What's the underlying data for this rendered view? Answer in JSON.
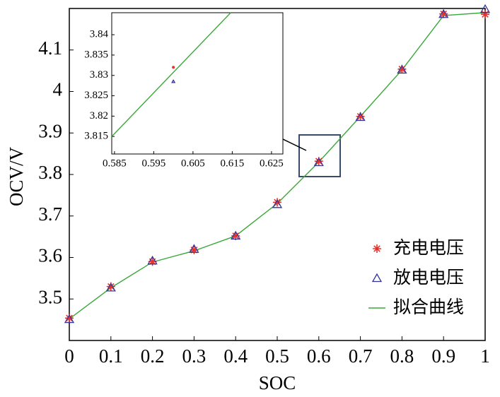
{
  "chart_data": [
    {
      "type": "line",
      "xlabel": "SOC",
      "ylabel": "OCV/V",
      "x": [
        0,
        0.1,
        0.2,
        0.3,
        0.4,
        0.5,
        0.6,
        0.7,
        0.8,
        0.9,
        1
      ],
      "xlim": [
        0,
        1
      ],
      "xticks": [
        0,
        0.1,
        0.2,
        0.3,
        0.4,
        0.5,
        0.6,
        0.7,
        0.8,
        0.9,
        1
      ],
      "ylim": [
        3.4,
        4.2
      ],
      "yticks": [
        3.5,
        3.6,
        3.7,
        3.8,
        3.9,
        4,
        4.1
      ],
      "legend": "right",
      "series": [
        {
          "name": "充电电压",
          "color": "#e8302a",
          "marker": "star",
          "values": [
            3.454,
            3.53,
            3.59,
            3.618,
            3.652,
            3.733,
            3.832,
            3.94,
            4.054,
            4.187,
            4.186
          ]
        },
        {
          "name": "放电电压",
          "color": "#33339a",
          "marker": "triangle",
          "values": [
            3.451,
            3.527,
            3.592,
            3.62,
            3.652,
            3.728,
            3.829,
            3.938,
            4.052,
            4.186,
            4.198
          ]
        },
        {
          "name": "拟合曲线",
          "color": "#3aa83a",
          "marker": "none",
          "values": [
            3.452,
            3.527,
            3.589,
            3.616,
            3.652,
            3.73,
            3.83,
            3.94,
            4.052,
            4.183,
            4.19
          ]
        }
      ]
    },
    {
      "type": "line",
      "xlim": [
        0.5843,
        0.6279
      ],
      "xticks": [
        0.585,
        0.595,
        0.605,
        0.615,
        0.625
      ],
      "ylim": [
        3.8107,
        3.8454
      ],
      "yticks": [
        3.815,
        3.82,
        3.825,
        3.83,
        3.835,
        3.84
      ],
      "series": [
        {
          "color": "#e8302a",
          "marker": "dot",
          "x": [
            0.6
          ],
          "values": [
            3.832
          ]
        },
        {
          "color": "#33339a",
          "marker": "triangle",
          "x": [
            0.6
          ],
          "values": [
            3.8285
          ]
        },
        {
          "color": "#3aa83a",
          "marker": "none",
          "x": [
            0.5843,
            0.6146
          ],
          "values": [
            3.815,
            3.8454
          ]
        }
      ]
    }
  ]
}
